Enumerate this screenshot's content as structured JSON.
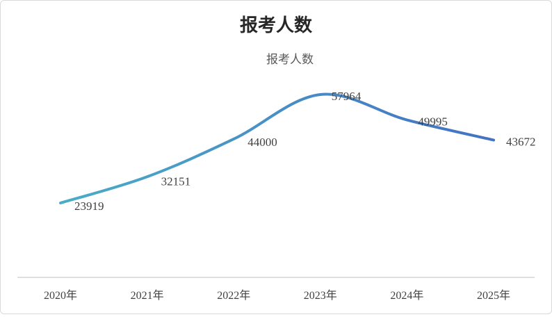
{
  "chart_data": {
    "type": "line",
    "title": "报考人数",
    "categories": [
      "2020年",
      "2021年",
      "2022年",
      "2023年",
      "2024年",
      "2025年"
    ],
    "series": [
      {
        "name": "报考人数",
        "values": [
          23919,
          32151,
          44000,
          57964,
          49995,
          43672
        ]
      }
    ],
    "data_labels": [
      "23919",
      "32151",
      "44000",
      "57964",
      "49995",
      "43672"
    ],
    "legend_position": "top",
    "grid": false,
    "smooth": true,
    "colors": {
      "line_start": "#4bacc6",
      "line_end": "#4472c4",
      "axis": "#bfbfbf",
      "text": "#404040",
      "title": "#262626"
    }
  }
}
